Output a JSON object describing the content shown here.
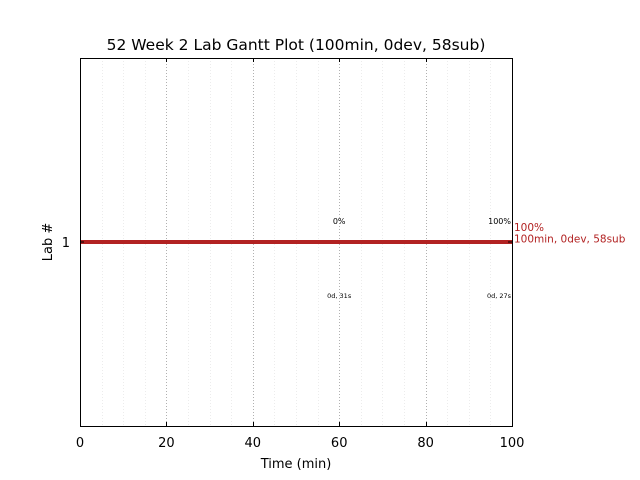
{
  "chart_data": {
    "type": "gantt",
    "title": "52 Week 2 Lab Gantt Plot (100min, 0dev, 58sub)",
    "xlabel": "Time (min)",
    "ylabel": "Lab #",
    "xlim": [
      0,
      100
    ],
    "x_ticks": [
      0,
      20,
      40,
      60,
      80,
      100
    ],
    "x_tick_labels": [
      "0",
      "20",
      "40",
      "60",
      "80",
      "100"
    ],
    "minor_grid_step": 5,
    "y_tick_labels": [
      "1"
    ],
    "bar_color": "#b22222",
    "bars": [
      {
        "lab": "1",
        "start": 0,
        "end": 100
      }
    ],
    "annotations": [
      {
        "x": 60,
        "text": "0%",
        "position": "above"
      },
      {
        "x": 100,
        "text": "100%",
        "position": "above"
      },
      {
        "x": 60,
        "text": "0d, 31s",
        "position": "below"
      },
      {
        "x": 100,
        "text": "0d, 27s",
        "position": "below"
      }
    ],
    "end_label_lines": [
      "100%",
      "100min, 0dev, 58sub"
    ]
  }
}
